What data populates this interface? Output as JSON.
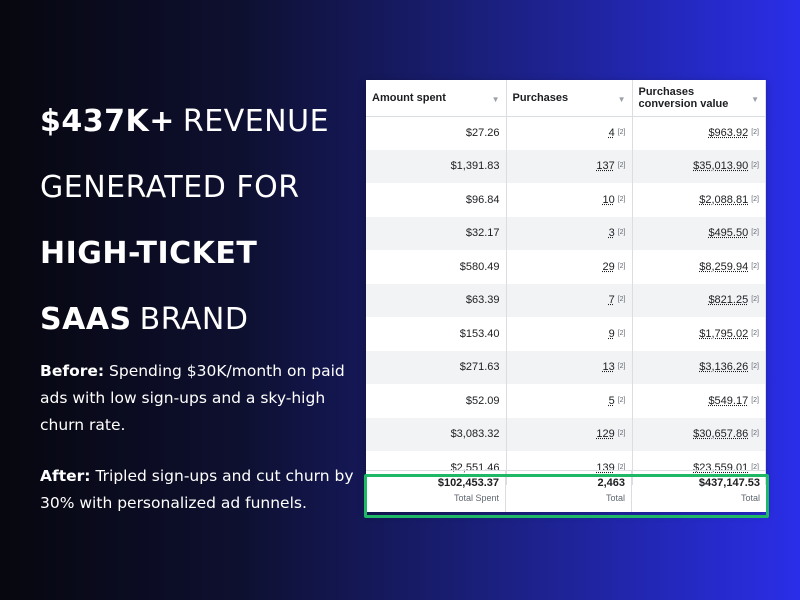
{
  "headline": {
    "line1": {
      "bold": "$437K+",
      "rest": "REVENUE"
    },
    "line2": {
      "rest": "GENERATED FOR"
    },
    "line3": {
      "bold": "HIGH-TICKET"
    },
    "line4": {
      "bold": "SAAS",
      "rest": "BRAND"
    }
  },
  "story": {
    "before_label": "Before:",
    "before_text": "Spending $30K/month on paid ads with low sign-ups and a sky-high churn rate.",
    "after_label": "After:",
    "after_text": "Tripled sign-ups and cut churn by 30% with personalized ad funnels."
  },
  "table": {
    "headers": [
      "Amount spent",
      "Purchases",
      "Purchases conversion value"
    ],
    "rows": [
      {
        "spent": "$27.26",
        "purchases": "4",
        "value": "$963.92"
      },
      {
        "spent": "$1,391.83",
        "purchases": "137",
        "value": "$35,013.90"
      },
      {
        "spent": "$96.84",
        "purchases": "10",
        "value": "$2,088.81"
      },
      {
        "spent": "$32.17",
        "purchases": "3",
        "value": "$495.50"
      },
      {
        "spent": "$580.49",
        "purchases": "29",
        "value": "$8,259.94"
      },
      {
        "spent": "$63.39",
        "purchases": "7",
        "value": "$821.25"
      },
      {
        "spent": "$153.40",
        "purchases": "9",
        "value": "$1,795.02"
      },
      {
        "spent": "$271.63",
        "purchases": "13",
        "value": "$3,136.26"
      },
      {
        "spent": "$52.09",
        "purchases": "5",
        "value": "$549.17"
      },
      {
        "spent": "$3,083.32",
        "purchases": "129",
        "value": "$30,657.86"
      },
      {
        "spent": "$2,551.46",
        "purchases": "139",
        "value": "$23,559.01"
      }
    ],
    "footnote_mark": "[2]",
    "totals": {
      "spent": "$102,453.37",
      "spent_label": "Total Spent",
      "purchases": "2,463",
      "purchases_label": "Total",
      "value": "$437,147.53",
      "value_label": "Total"
    }
  },
  "colors": {
    "highlight": "#1fb866",
    "bg_end": "#2a2ee8"
  }
}
